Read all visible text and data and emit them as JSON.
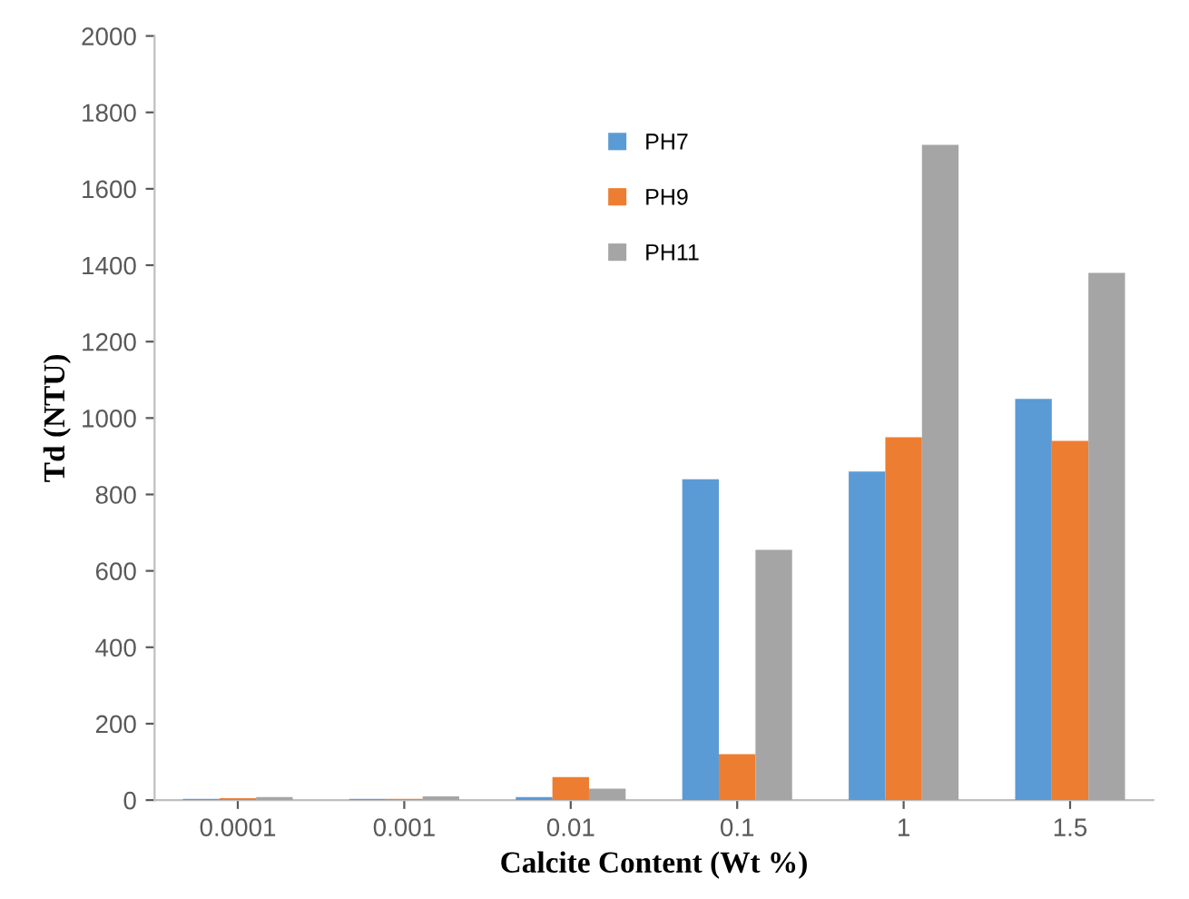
{
  "chart_data": {
    "type": "bar",
    "xlabel": "Calcite Content (Wt %)",
    "ylabel": "Td (NTU)",
    "categories": [
      "0.0001",
      "0.001",
      "0.01",
      "0.1",
      "1",
      "1.5"
    ],
    "series": [
      {
        "name": "PH7",
        "color": "#5b9bd5",
        "values": [
          3,
          3,
          8,
          840,
          860,
          1050
        ]
      },
      {
        "name": "PH9",
        "color": "#ed7d31",
        "values": [
          5,
          3,
          60,
          120,
          950,
          940
        ]
      },
      {
        "name": "PH11",
        "color": "#a5a5a5",
        "values": [
          8,
          10,
          30,
          655,
          1715,
          1380
        ]
      }
    ],
    "ylim": [
      0,
      2000
    ],
    "yticks": [
      0,
      200,
      400,
      600,
      800,
      1000,
      1200,
      1400,
      1600,
      1800,
      2000
    ],
    "grid": false,
    "legend": "top center"
  }
}
